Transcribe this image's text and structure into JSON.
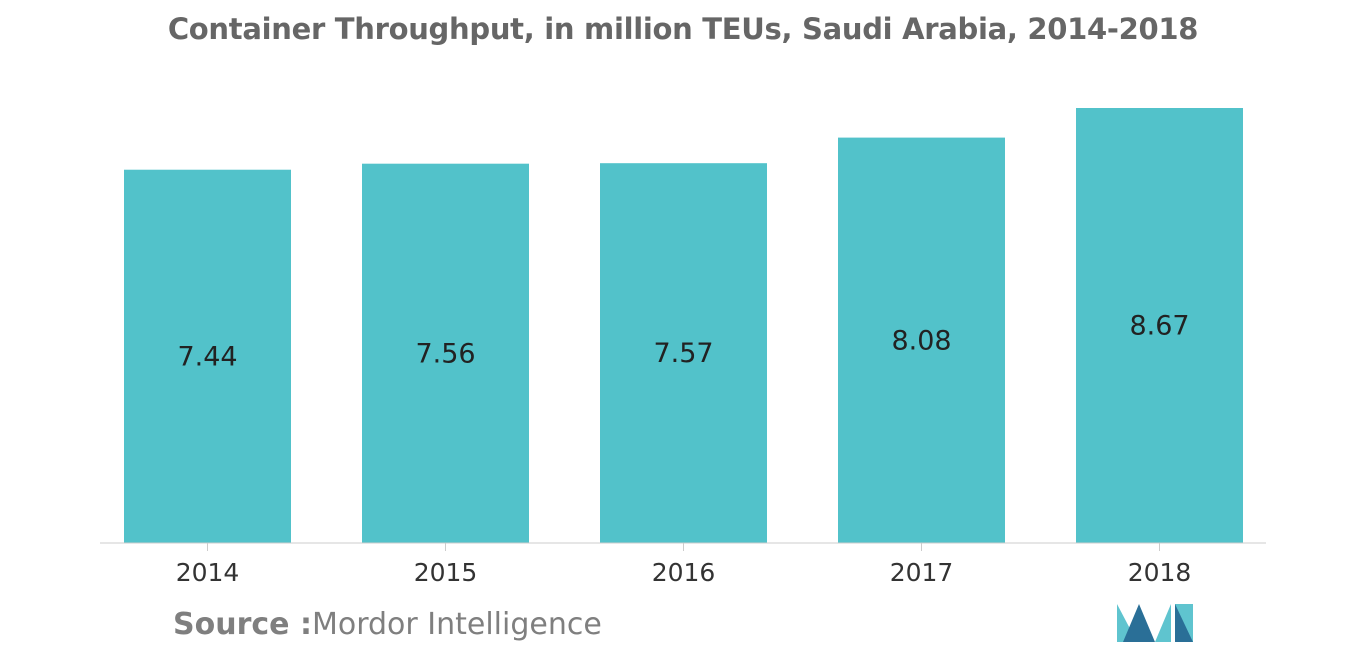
{
  "chart_data": {
    "type": "bar",
    "title": "Container Throughput, in million TEUs, Saudi Arabia, 2014-2018",
    "categories": [
      "2014",
      "2015",
      "2016",
      "2017",
      "2018"
    ],
    "values": [
      7.44,
      7.56,
      7.57,
      8.08,
      8.67
    ],
    "value_labels": [
      "7.44",
      "7.56",
      "7.57",
      "8.08",
      "8.67"
    ],
    "xlabel": "",
    "ylabel": "",
    "ylim": [
      0,
      8.67
    ],
    "grid": false,
    "legend": "none",
    "bar_color": "#52C2CA",
    "axis_color": "#CCCCCC"
  },
  "source": {
    "prefix": "Source :",
    "text": "Mordor Intelligence"
  },
  "logo": {
    "icon": "mordor-intelligence-logo-icon",
    "color_dark": "#2A6F97",
    "color_light": "#5FC4CF"
  }
}
